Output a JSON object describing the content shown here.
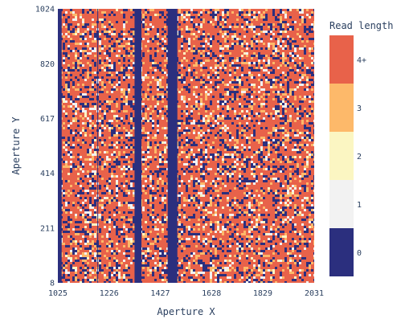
{
  "chart_data": {
    "type": "heatmap",
    "xlabel": "Aperture X",
    "ylabel": "Aperture Y",
    "xlim": [
      1025,
      2031
    ],
    "ylim": [
      8,
      1024
    ],
    "x_ticks": [
      "1025",
      "1226",
      "1427",
      "1628",
      "1829",
      "2031"
    ],
    "y_ticks": [
      "8",
      "211",
      "414",
      "617",
      "820",
      "1024"
    ],
    "colorbar": {
      "title": "Read length",
      "levels": [
        {
          "label": "0",
          "color": "#2b2f7e"
        },
        {
          "label": "1",
          "color": "#f2f2f2"
        },
        {
          "label": "2",
          "color": "#fbf6c2"
        },
        {
          "label": "3",
          "color": "#fdb96a"
        },
        {
          "label": "4+",
          "color": "#e8624a"
        }
      ]
    },
    "zero_columns_x": [
      [
        1025,
        1040
      ],
      [
        1180,
        1183
      ],
      [
        1326,
        1353
      ],
      [
        1456,
        1494
      ]
    ],
    "level_frequencies": {
      "0": 0.2,
      "1": 0.07,
      "2": 0.02,
      "3": 0.11,
      "4+": 0.6
    }
  }
}
